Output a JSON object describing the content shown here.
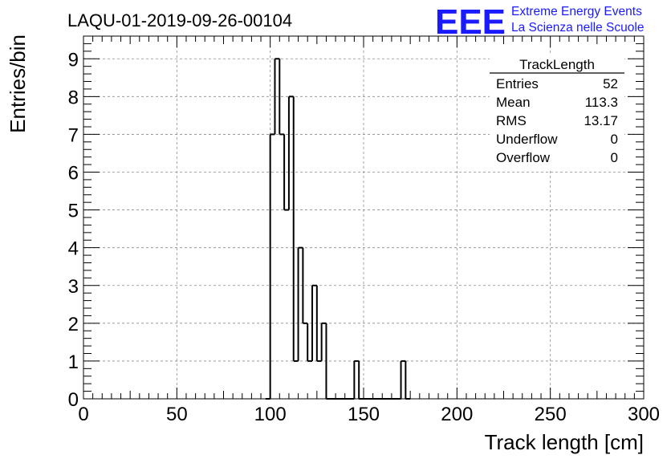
{
  "header": {
    "run_title": "LAQU-01-2019-09-26-00104",
    "logo_text": "EEE",
    "logo_line1": "Extreme Energy Events",
    "logo_line2": "La Scienza nelle Scuole",
    "logo_color": "#1a1aff"
  },
  "stats": {
    "title": "TrackLength",
    "rows": [
      {
        "label": "Entries",
        "value": "52"
      },
      {
        "label": "Mean",
        "value": "113.3"
      },
      {
        "label": "RMS",
        "value": "13.17"
      },
      {
        "label": "Underflow",
        "value": "0"
      },
      {
        "label": "Overflow",
        "value": "0"
      }
    ]
  },
  "chart_data": {
    "type": "histogram",
    "title": "LAQU-01-2019-09-26-00104",
    "xlabel": "Track length [cm]",
    "ylabel": "Entries/bin",
    "xlim": [
      0,
      300
    ],
    "ylim": [
      0,
      9.6
    ],
    "x_ticks": [
      0,
      50,
      100,
      150,
      200,
      250,
      300
    ],
    "y_ticks": [
      0,
      1,
      2,
      3,
      4,
      5,
      6,
      7,
      8,
      9
    ],
    "grid": true,
    "bin_edges": [
      97.5,
      100,
      102.5,
      105,
      107.5,
      110,
      112.5,
      115,
      117.5,
      120,
      122.5,
      125,
      127.5,
      130,
      132.5,
      135,
      137.5,
      140,
      142.5,
      145,
      147.5,
      150,
      152.5,
      155,
      157.5,
      160,
      162.5,
      165,
      167.5,
      170,
      172.5,
      175
    ],
    "values": [
      0,
      7,
      9,
      7,
      5,
      8,
      1,
      4,
      2,
      1,
      3,
      1,
      2,
      0,
      0,
      0,
      0,
      0,
      0,
      1,
      0,
      0,
      0,
      0,
      0,
      0,
      0,
      0,
      0,
      1,
      0
    ],
    "line_color": "#000000"
  }
}
